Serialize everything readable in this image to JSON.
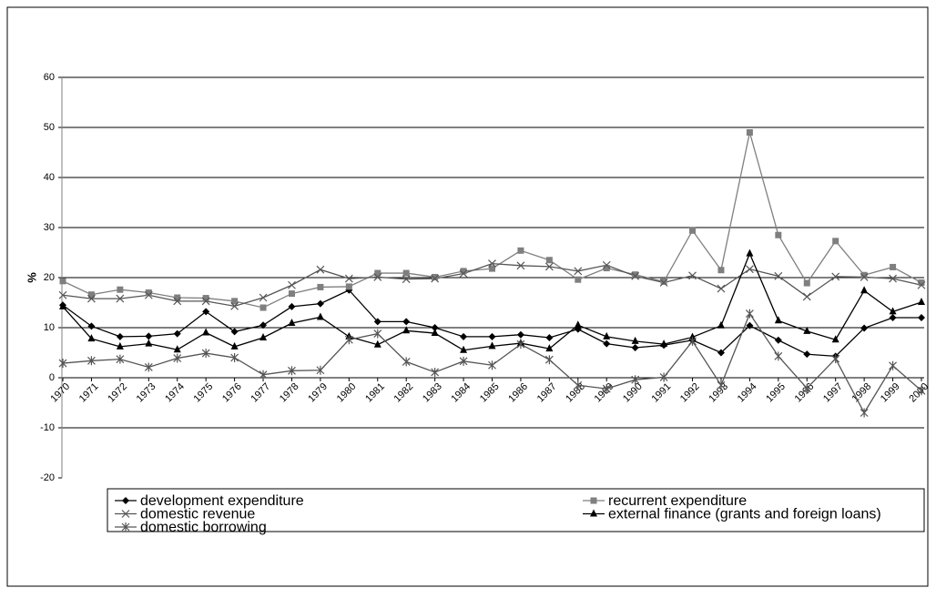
{
  "chart_data": {
    "type": "line",
    "y_label": "%",
    "categories": [
      "1970",
      "1971",
      "1972",
      "1973",
      "1974",
      "1975",
      "1976",
      "1977",
      "1978",
      "1979",
      "1980",
      "1981",
      "1982",
      "1983",
      "1984",
      "1985",
      "1986",
      "1987",
      "1988",
      "1989",
      "1990",
      "1991",
      "1992",
      "1993",
      "1994",
      "1995",
      "1996",
      "1997",
      "1998",
      "1999",
      "2000"
    ],
    "ylim": [
      -20,
      60
    ],
    "yticks": [
      -20,
      -10,
      0,
      10,
      20,
      30,
      40,
      50,
      60
    ],
    "grid": true,
    "legend": "bottom",
    "series": [
      {
        "name": "development expenditure",
        "color": "#000000",
        "marker": "diamond",
        "values": [
          14.5,
          10.3,
          8.2,
          8.3,
          8.8,
          13.2,
          9.2,
          10.5,
          14.2,
          14.8,
          17.5,
          11.2,
          11.2,
          10,
          8.2,
          8.2,
          8.6,
          8,
          9.7,
          6.8,
          6,
          6.5,
          7.5,
          5,
          10.4,
          7.5,
          4.7,
          4.3,
          9.9,
          12,
          12
        ]
      },
      {
        "name": "recurrent expenditure",
        "color": "#7f7f7f",
        "marker": "square",
        "values": [
          19.3,
          16.6,
          17.6,
          17,
          16,
          15.9,
          15.3,
          14,
          16.8,
          18.1,
          18.2,
          20.9,
          20.9,
          20.1,
          21.3,
          21.8,
          25.4,
          23.5,
          19.6,
          21.9,
          20.6,
          19.2,
          29.4,
          21.5,
          49,
          28.5,
          18.9,
          27.3,
          20.5,
          22.1,
          19
        ]
      },
      {
        "name": "domestic revenue",
        "color": "#555555",
        "marker": "cross",
        "values": [
          16.5,
          15.8,
          15.8,
          16.5,
          15.3,
          15.3,
          14.3,
          16,
          18.5,
          21.6,
          19.8,
          20.1,
          19.7,
          19.8,
          20.8,
          22.8,
          22.4,
          22.2,
          21.3,
          22.5,
          20.3,
          19,
          20.4,
          17.8,
          21.7,
          20.3,
          16.2,
          20.2,
          20.1,
          19.8,
          18.5
        ]
      },
      {
        "name": "external finance (grants and foreign loans)",
        "color": "#000000",
        "marker": "triangle",
        "values": [
          14.2,
          7.8,
          6.2,
          6.8,
          5.6,
          9,
          6.2,
          8,
          10.9,
          12.1,
          8.2,
          6.6,
          9.4,
          8.9,
          5.5,
          6.3,
          6.9,
          5.8,
          10.5,
          8.2,
          7.3,
          6.7,
          8.1,
          10.4,
          24.8,
          11.4,
          9.3,
          7.6,
          17.4,
          13.2,
          15.1
        ]
      },
      {
        "name": "domestic borrowing",
        "color": "#555555",
        "marker": "star",
        "values": [
          2.9,
          3.4,
          3.7,
          2.1,
          3.9,
          4.9,
          4,
          0.6,
          1.4,
          1.5,
          7.6,
          8.8,
          3.2,
          1.1,
          3.3,
          2.5,
          6.7,
          3.6,
          -1.5,
          -2.2,
          -0.4,
          0.1,
          7.3,
          -1.5,
          12.8,
          4.3,
          -2.1,
          3.8,
          -7,
          2.4,
          -2.6
        ]
      }
    ]
  }
}
